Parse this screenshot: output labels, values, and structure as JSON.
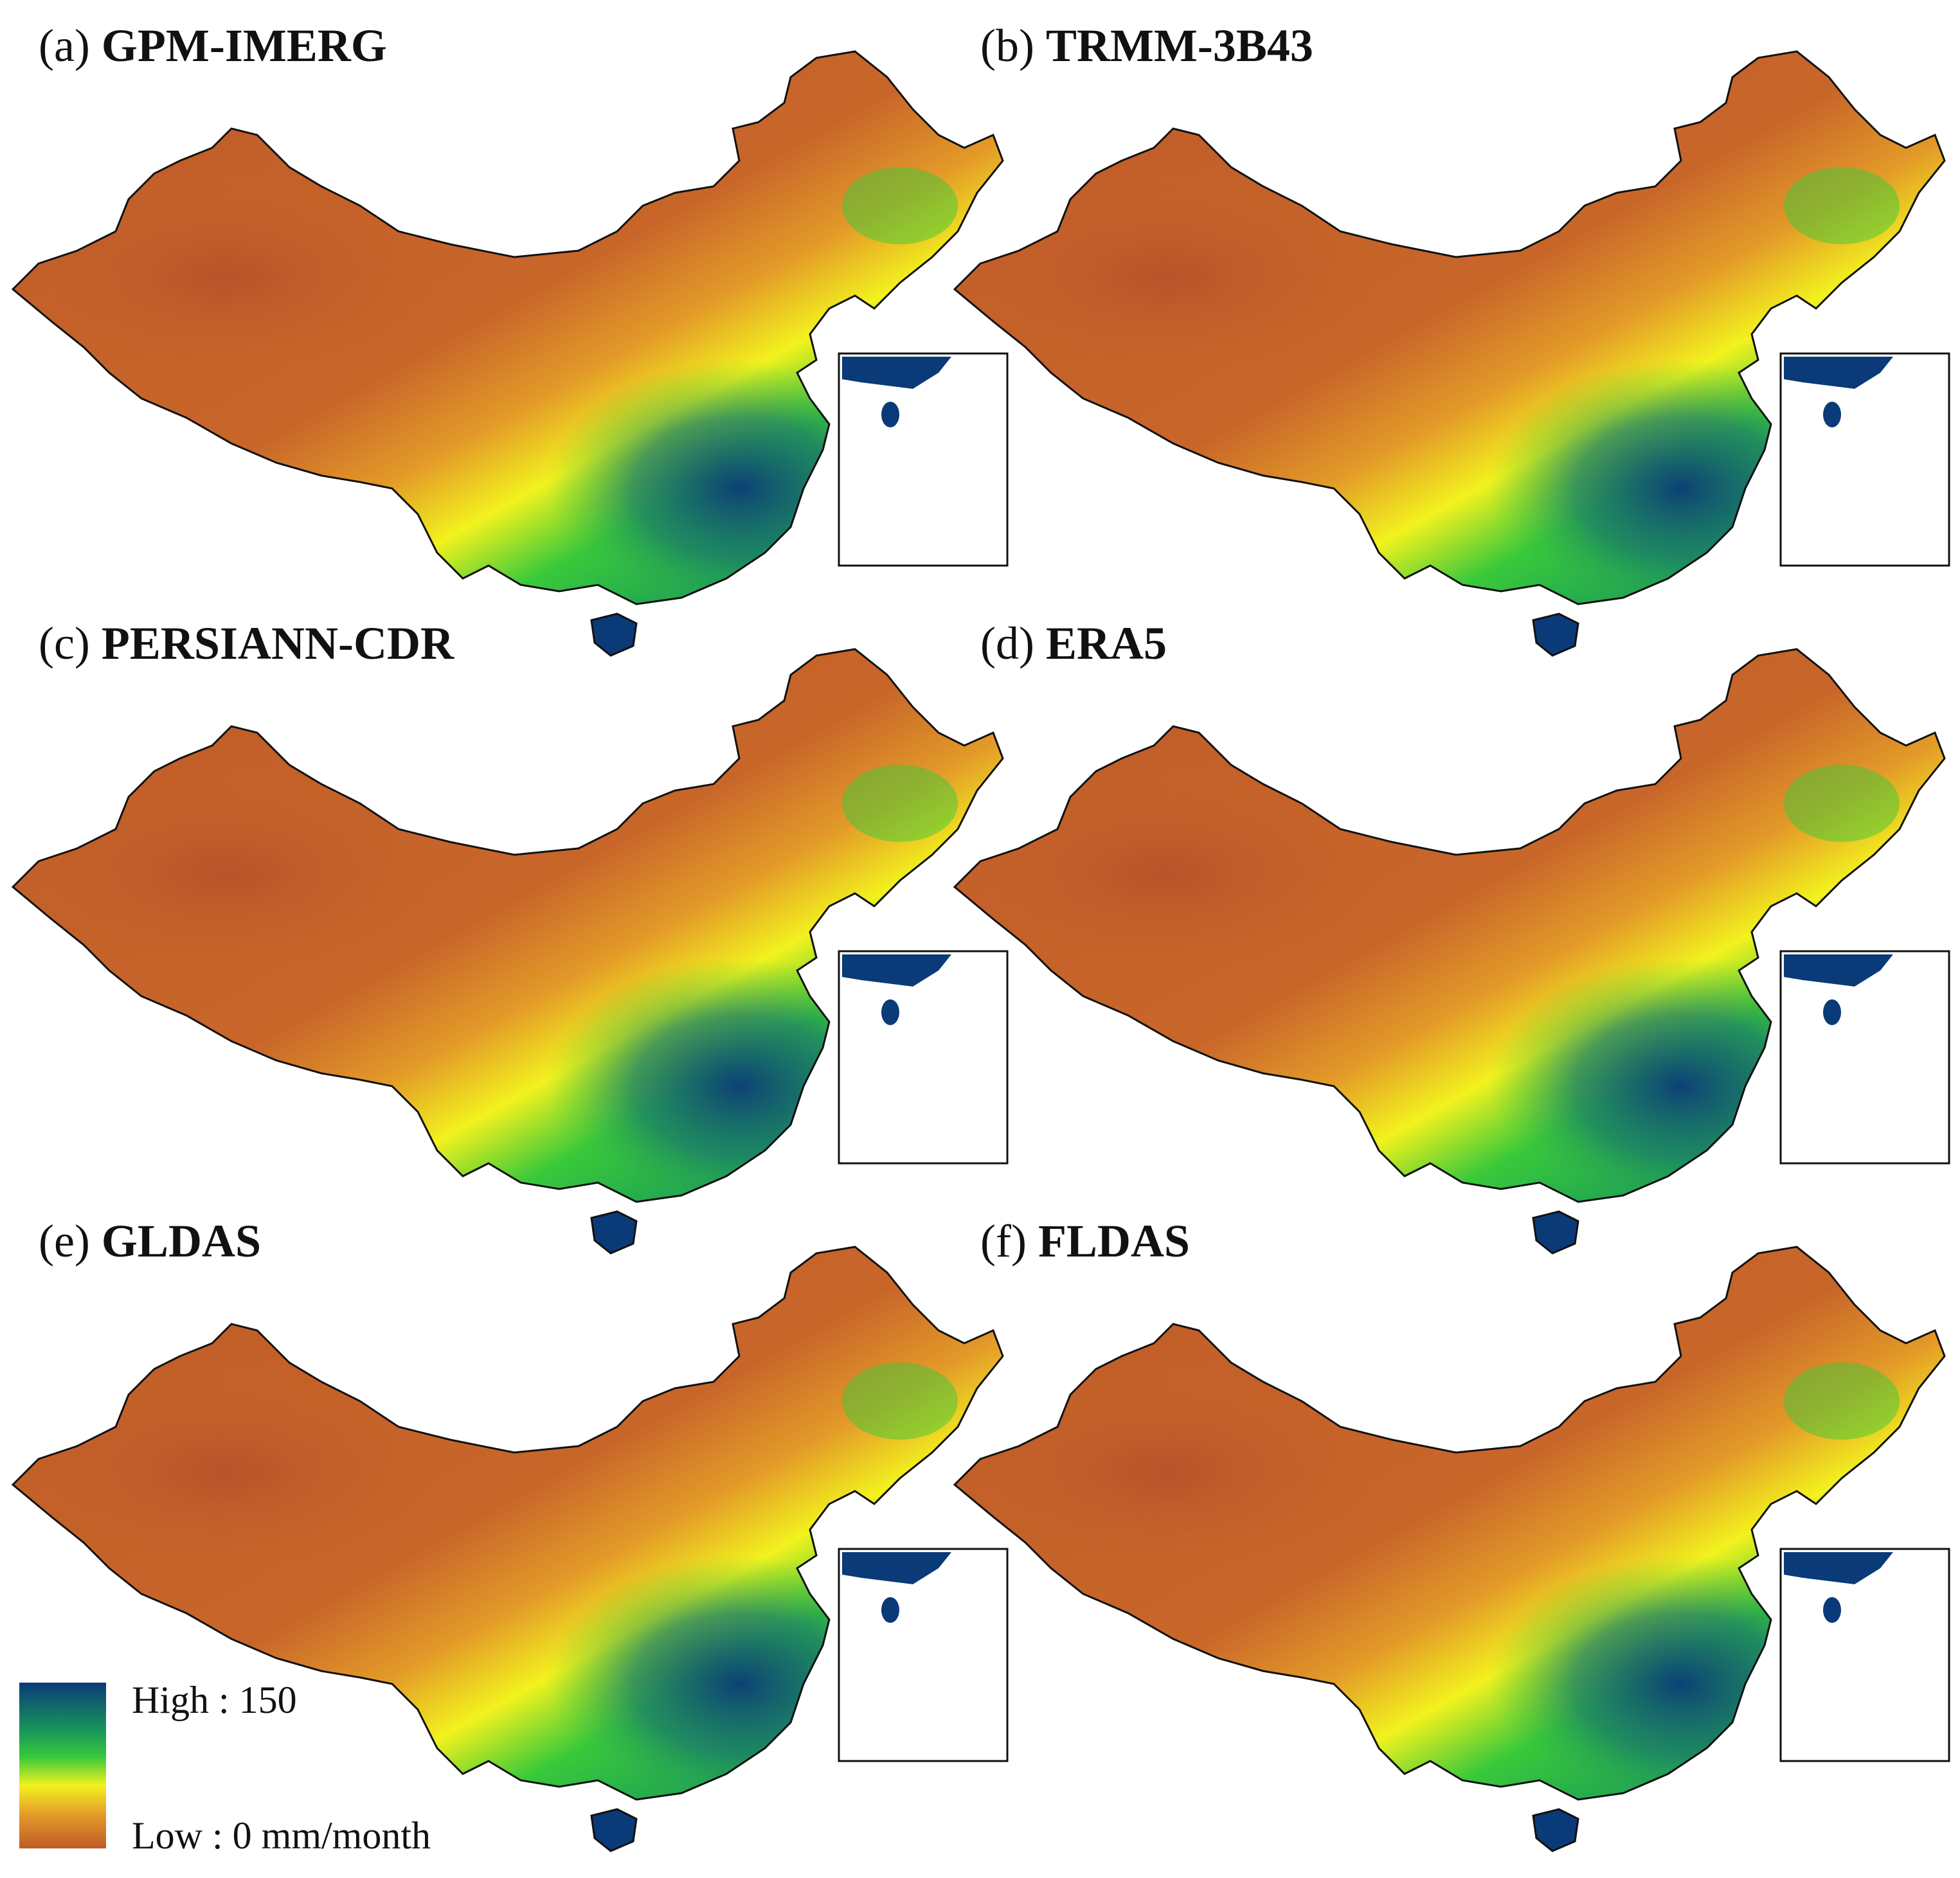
{
  "panels": [
    {
      "id": "a",
      "code": "(a)",
      "name": "GPM-IMERG"
    },
    {
      "id": "b",
      "code": "(b)",
      "name": "TRMM-3B43"
    },
    {
      "id": "c",
      "code": "(c)",
      "name": "PERSIANN-CDR"
    },
    {
      "id": "d",
      "code": "(d)",
      "name": "ERA5"
    },
    {
      "id": "e",
      "code": "(e)",
      "name": "GLDAS"
    },
    {
      "id": "f",
      "code": "(f)",
      "name": "FLDAS"
    }
  ],
  "legend": {
    "high_label": "High : 150",
    "low_label": "Low : 0  mm/month",
    "high_value": 150,
    "low_value": 0,
    "unit": "mm/month",
    "colors": [
      "#0a3a78",
      "#1a9a5a",
      "#39c93a",
      "#f2f21e",
      "#e39a28",
      "#bf5a28"
    ]
  }
}
